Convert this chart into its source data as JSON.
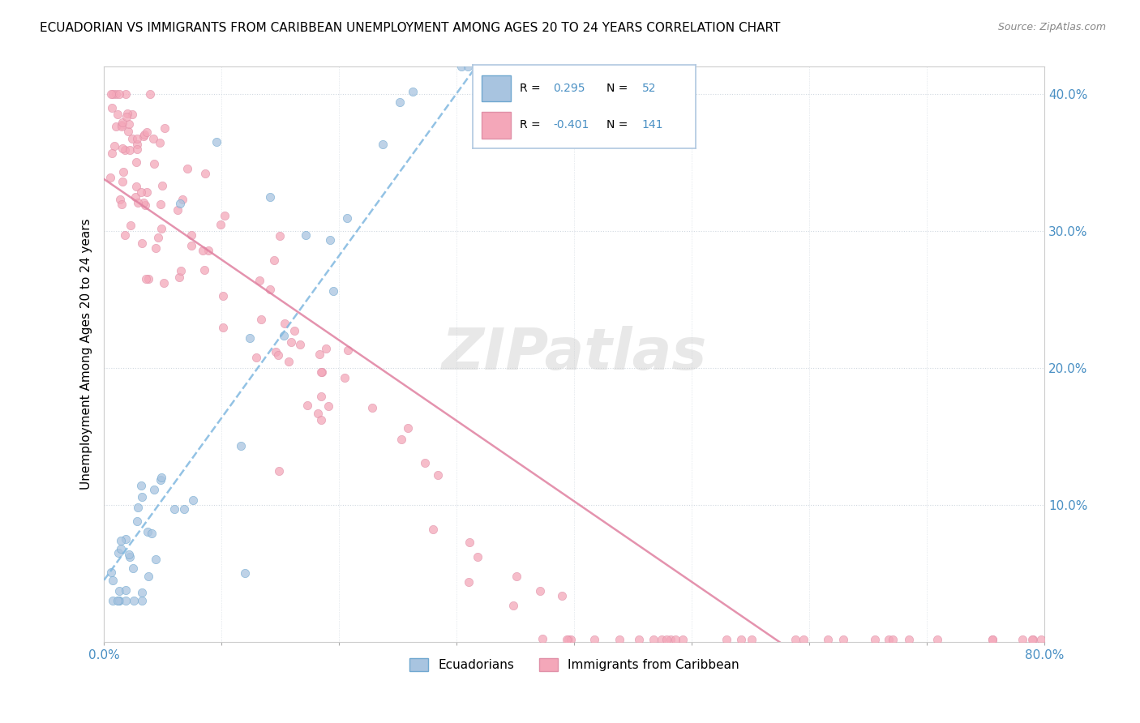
{
  "title": "ECUADORIAN VS IMMIGRANTS FROM CARIBBEAN UNEMPLOYMENT AMONG AGES 20 TO 24 YEARS CORRELATION CHART",
  "source": "Source: ZipAtlas.com",
  "ylabel": "Unemployment Among Ages 20 to 24 years",
  "xlim": [
    0.0,
    0.8
  ],
  "ylim": [
    0.0,
    0.42
  ],
  "color_blue": "#a8c4e0",
  "color_pink": "#f4a7b9",
  "color_blue_edge": "#70a8d0",
  "color_pink_edge": "#e090a8",
  "color_blue_line": "#80b8e0",
  "color_pink_line": "#e080a0",
  "color_text_blue": "#4a90c4",
  "watermark": "ZIPatlas"
}
